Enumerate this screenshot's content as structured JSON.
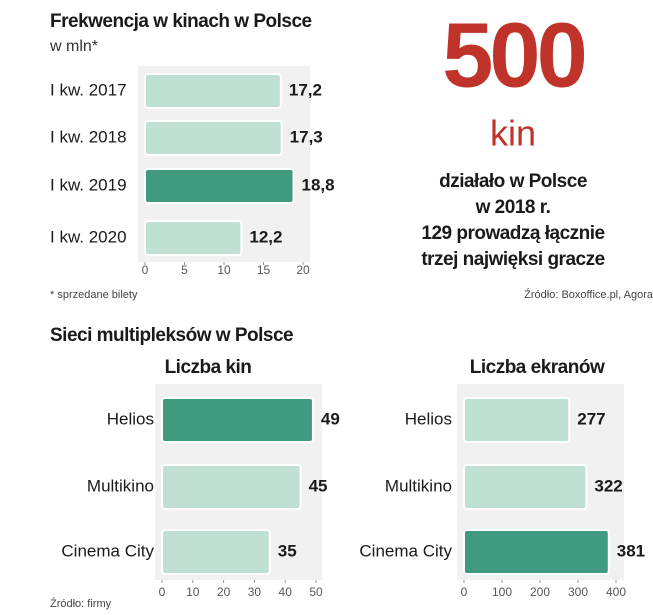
{
  "chart_data": [
    {
      "type": "hbar",
      "title": "Frekwencja w kinach w Polsce",
      "subtitle": "w mln*",
      "categories": [
        "I kw. 2017",
        "I kw. 2018",
        "I kw. 2019",
        "I kw. 2020"
      ],
      "values": [
        17.2,
        17.3,
        18.8,
        12.2
      ],
      "value_labels": [
        "17,2",
        "17,3",
        "18,8",
        "12,2"
      ],
      "colors": [
        "#bfe0d2",
        "#bfe0d2",
        "#3f9a80",
        "#bfe0d2"
      ],
      "xlim": [
        0,
        20
      ],
      "xticks": [
        0,
        5,
        10,
        15,
        20
      ],
      "note": "* sprzedane bilety"
    },
    {
      "type": "hbar",
      "title": "Liczba kin",
      "categories": [
        "Helios",
        "Multikino",
        "Cinema City"
      ],
      "values": [
        49,
        45,
        35
      ],
      "colors": [
        "#3f9a80",
        "#bfe0d2",
        "#bfe0d2"
      ],
      "xlim": [
        0,
        50
      ],
      "xticks": [
        0,
        10,
        20,
        30,
        40,
        50
      ]
    },
    {
      "type": "hbar",
      "title": "Liczba ekranów",
      "categories": [
        "Helios",
        "Multikino",
        "Cinema City"
      ],
      "values": [
        277,
        322,
        381
      ],
      "colors": [
        "#bfe0d2",
        "#bfe0d2",
        "#3f9a80"
      ],
      "xlim": [
        0,
        400
      ],
      "xticks": [
        0,
        100,
        200,
        300,
        400
      ]
    }
  ],
  "highlight": {
    "number": "500",
    "unit": "kin",
    "lines": [
      "działało w Polsce",
      "w 2018 r.",
      "129 prowadzą łącznie",
      "trzej najwięksi gracze"
    ]
  },
  "section_title": "Sieci multipleksów w Polsce",
  "source_top": "Źródło: Boxoffice.pl, Agora",
  "source_bottom": "Źródło: firmy"
}
